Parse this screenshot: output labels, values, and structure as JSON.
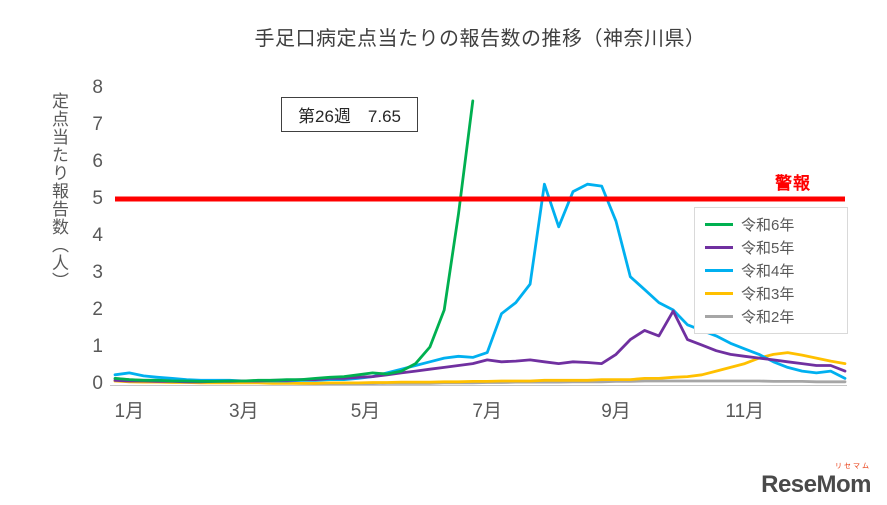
{
  "chart_data": {
    "type": "line",
    "title": "手足口病定点当たりの報告数の推移（神奈川県）",
    "ylabel": "定点当たり報告数（人）",
    "xlabel": "",
    "ylim": [
      0,
      8
    ],
    "yticks": [
      0,
      1,
      2,
      3,
      4,
      5,
      6,
      7,
      8
    ],
    "weeks": 52,
    "grid": false,
    "legend_position": "right",
    "x_tick_labels": [
      "1月",
      "3月",
      "5月",
      "7月",
      "9月",
      "11月"
    ],
    "x_tick_weeks": [
      2,
      10,
      18.5,
      27,
      36,
      45
    ],
    "alert_line": {
      "label": "警報",
      "value": 5,
      "color": "#FF0000"
    },
    "annotation": {
      "label": "第26週　7.65",
      "series": "令和6年",
      "week": 26,
      "value": 7.65
    },
    "series": [
      {
        "name": "令和6年",
        "id": "reiwa6",
        "color": "#00B050",
        "values": [
          0.15,
          0.12,
          0.1,
          0.1,
          0.08,
          0.08,
          0.07,
          0.07,
          0.08,
          0.08,
          0.1,
          0.1,
          0.12,
          0.12,
          0.15,
          0.18,
          0.2,
          0.25,
          0.3,
          0.27,
          0.35,
          0.55,
          1.0,
          2.0,
          4.6,
          7.65
        ]
      },
      {
        "name": "令和5年",
        "id": "reiwa5",
        "color": "#7030A0",
        "values": [
          0.1,
          0.08,
          0.08,
          0.07,
          0.07,
          0.06,
          0.06,
          0.07,
          0.07,
          0.08,
          0.08,
          0.1,
          0.1,
          0.12,
          0.12,
          0.15,
          0.15,
          0.18,
          0.2,
          0.25,
          0.3,
          0.35,
          0.4,
          0.45,
          0.5,
          0.55,
          0.65,
          0.6,
          0.62,
          0.65,
          0.6,
          0.55,
          0.6,
          0.58,
          0.55,
          0.8,
          1.2,
          1.45,
          1.3,
          1.97,
          1.2,
          1.05,
          0.9,
          0.8,
          0.75,
          0.7,
          0.65,
          0.6,
          0.55,
          0.5,
          0.5,
          0.35
        ]
      },
      {
        "name": "令和4年",
        "id": "reiwa4",
        "color": "#00B0F0",
        "values": [
          0.25,
          0.3,
          0.22,
          0.18,
          0.15,
          0.12,
          0.1,
          0.1,
          0.1,
          0.08,
          0.08,
          0.08,
          0.08,
          0.1,
          0.1,
          0.12,
          0.12,
          0.15,
          0.2,
          0.3,
          0.4,
          0.5,
          0.6,
          0.7,
          0.75,
          0.72,
          0.85,
          1.9,
          2.2,
          2.7,
          5.4,
          4.25,
          5.2,
          5.4,
          5.35,
          4.4,
          2.9,
          2.55,
          2.2,
          2.0,
          1.6,
          1.45,
          1.3,
          1.1,
          0.95,
          0.8,
          0.6,
          0.45,
          0.35,
          0.3,
          0.35,
          0.15
        ]
      },
      {
        "name": "令和3年",
        "id": "reiwa3",
        "color": "#FFC000",
        "values": [
          0.08,
          0.06,
          0.05,
          0.05,
          0.04,
          0.04,
          0.03,
          0.03,
          0.03,
          0.03,
          0.03,
          0.02,
          0.02,
          0.02,
          0.02,
          0.03,
          0.03,
          0.03,
          0.04,
          0.04,
          0.05,
          0.05,
          0.05,
          0.06,
          0.06,
          0.07,
          0.07,
          0.08,
          0.08,
          0.08,
          0.1,
          0.1,
          0.1,
          0.1,
          0.12,
          0.12,
          0.12,
          0.15,
          0.15,
          0.18,
          0.2,
          0.25,
          0.35,
          0.45,
          0.55,
          0.7,
          0.8,
          0.85,
          0.78,
          0.7,
          0.62,
          0.55
        ]
      },
      {
        "name": "令和2年",
        "id": "reiwa2",
        "color": "#A6A6A6",
        "values": [
          0.15,
          0.12,
          0.1,
          0.1,
          0.1,
          0.08,
          0.08,
          0.08,
          0.08,
          0.05,
          0.05,
          0.04,
          0.03,
          0.02,
          0.01,
          0.01,
          0.01,
          0.01,
          0.01,
          0.02,
          0.02,
          0.02,
          0.02,
          0.03,
          0.03,
          0.03,
          0.04,
          0.04,
          0.05,
          0.05,
          0.05,
          0.05,
          0.06,
          0.06,
          0.06,
          0.07,
          0.07,
          0.08,
          0.08,
          0.08,
          0.08,
          0.08,
          0.08,
          0.08,
          0.08,
          0.08,
          0.07,
          0.07,
          0.07,
          0.06,
          0.06,
          0.06
        ]
      }
    ]
  },
  "logo": {
    "text": "ReseMom",
    "ruby": "リセマム",
    "accent_color": "#E8380D"
  }
}
